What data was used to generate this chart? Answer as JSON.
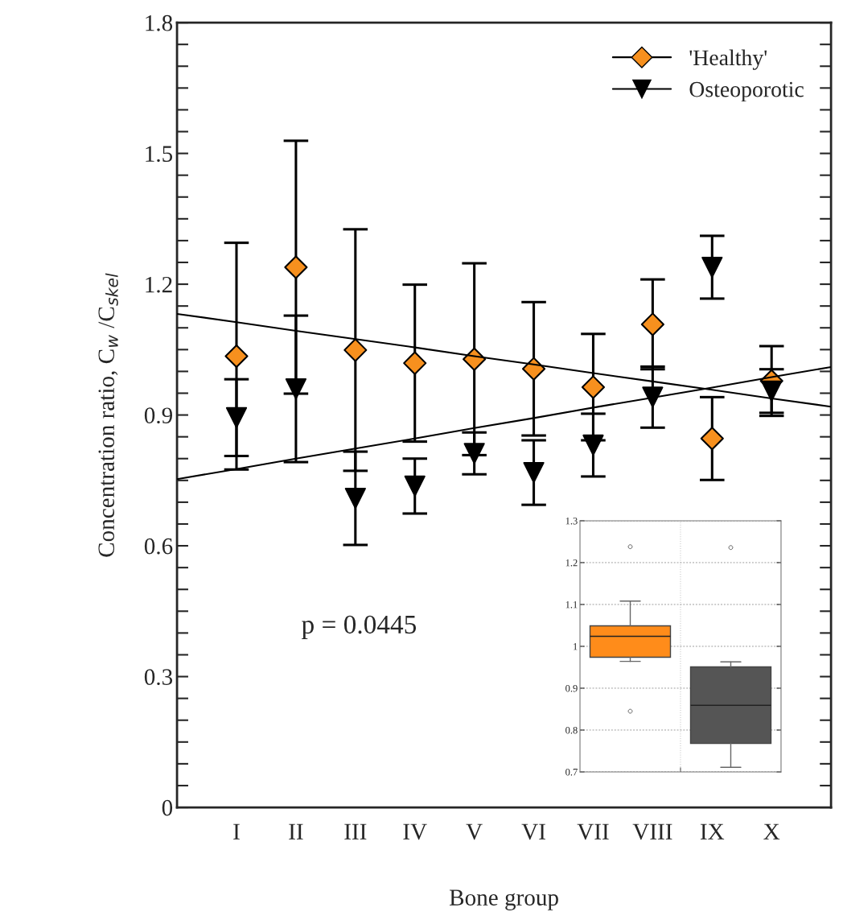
{
  "chart_data": [
    {
      "type": "scatter",
      "xlabel": "Bone group",
      "ylabel": "Concentration ratio, C$_{w}$ /C$_{skel}$",
      "ylim": [
        0,
        1.8
      ],
      "categories": [
        null,
        "I",
        "II",
        "III",
        "IV",
        "V",
        "VI",
        "VII",
        "VIII",
        "IX",
        "X",
        null
      ],
      "yticks": [
        0,
        {
          "value": 0.05,
          "label": null
        },
        {
          "value": 0.1,
          "label": null
        },
        {
          "value": 0.15,
          "label": null
        },
        {
          "value": 0.2,
          "label": null
        },
        {
          "value": 0.25,
          "label": null
        },
        0.3,
        {
          "value": 0.35,
          "label": null
        },
        {
          "value": 0.4,
          "label": null
        },
        {
          "value": 0.45,
          "label": null
        },
        {
          "value": 0.5,
          "label": null
        },
        {
          "value": 0.55,
          "label": null
        },
        0.6,
        {
          "value": 0.65,
          "label": null
        },
        {
          "value": 0.7,
          "label": null
        },
        {
          "value": 0.75,
          "label": null
        },
        {
          "value": 0.8,
          "label": null
        },
        {
          "value": 0.85,
          "label": null
        },
        0.9,
        {
          "value": 0.95,
          "label": null
        },
        {
          "value": 1.0,
          "label": null
        },
        {
          "value": 1.05,
          "label": null
        },
        {
          "value": 1.1,
          "label": null
        },
        {
          "value": 1.15,
          "label": null
        },
        1.2,
        {
          "value": 1.25,
          "label": null
        },
        {
          "value": 1.3,
          "label": null
        },
        {
          "value": 1.35,
          "label": null
        },
        {
          "value": 1.4,
          "label": null
        },
        {
          "value": 1.45,
          "label": null
        },
        1.5,
        {
          "value": 1.55,
          "label": null
        },
        {
          "value": 1.6,
          "label": null
        },
        {
          "value": 1.65,
          "label": null
        },
        {
          "value": 1.7,
          "label": null
        },
        {
          "value": 1.75,
          "label": null
        },
        1.8
      ],
      "series": [
        {
          "name": "'Healthy'",
          "color": "#f7901e",
          "marker": "diamond",
          "values": [
            null,
            1.035,
            1.239,
            1.049,
            1.019,
            1.028,
            1.006,
            0.964,
            1.108,
            0.846,
            0.978,
            null
          ],
          "errors": [
            null,
            0.26,
            0.29,
            0.277,
            0.18,
            0.22,
            0.153,
            0.122,
            0.103,
            0.095,
            0.08,
            null
          ]
        },
        {
          "name": "Osteoporotic",
          "color": "#000000",
          "marker": "triangle",
          "values": [
            null,
            0.894,
            0.96,
            0.709,
            0.737,
            0.812,
            0.768,
            0.831,
            0.941,
            1.239,
            0.955,
            null
          ],
          "errors": [
            null,
            0.088,
            0.168,
            0.107,
            0.063,
            0.048,
            0.074,
            0.072,
            0.07,
            0.072,
            0.05,
            null
          ]
        },
        {
          "type": "line",
          "color": "#000000",
          "values": [
            1.132,
            1.113,
            1.093,
            1.074,
            1.055,
            1.035,
            1.016,
            0.996,
            0.977,
            0.958,
            0.938,
            0.919
          ]
        },
        {
          "type": "line",
          "color": "#000000",
          "values": [
            0.753,
            0.776,
            0.8,
            0.823,
            0.846,
            0.87,
            0.893,
            0.917,
            0.94,
            0.963,
            0.987,
            1.01
          ]
        }
      ],
      "annotations": [
        "p = 0.0445"
      ],
      "legend": "top right",
      "grid": false
    },
    {
      "type": "box",
      "categories": [
        null,
        null
      ],
      "colors": [
        "#ff8c1a",
        "#555555"
      ],
      "boxes": [
        {
          "low": 0.964,
          "q1": 0.974,
          "median": 1.024,
          "q3": 1.049,
          "high": 1.108,
          "outliers": [
            1.238,
            0.845
          ]
        },
        {
          "low": 0.711,
          "q1": 0.768,
          "median": 0.859,
          "q3": 0.951,
          "high": 0.963,
          "outliers": [
            1.236
          ]
        }
      ],
      "ylim": [
        0.7,
        1.3
      ],
      "yticks": [
        0.7,
        0.8,
        0.9,
        1,
        1.1,
        1.2,
        1.3
      ],
      "grid": true
    }
  ]
}
